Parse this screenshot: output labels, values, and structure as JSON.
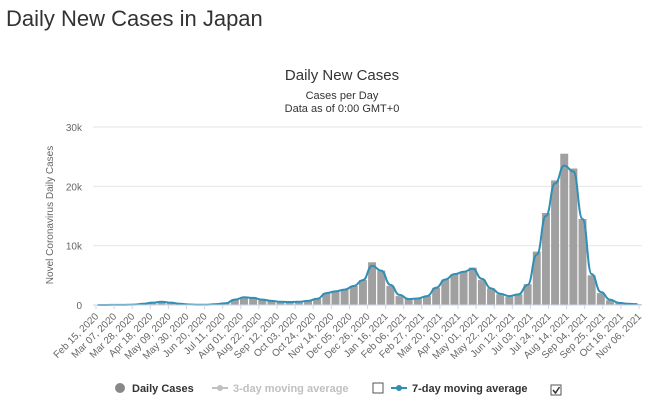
{
  "page": {
    "title": "Daily New Cases in Japan"
  },
  "chart_data": {
    "type": "bar",
    "title": "Daily New Cases",
    "subtitle": "Cases per Day",
    "subtitle2": "Data as of 0:00 GMT+0",
    "ylabel": "Novel Coronavirus Daily Cases",
    "xlabel": "",
    "ylim": [
      0,
      30000
    ],
    "y_ticks": [
      0,
      10000,
      20000,
      30000
    ],
    "y_tick_labels": [
      "0",
      "10k",
      "20k",
      "30k"
    ],
    "grid": true,
    "legend_position": "bottom",
    "x_tick_labels": [
      "Feb 15, 2020",
      "Mar 07, 2020",
      "Mar 28, 2020",
      "Apr 18, 2020",
      "May 09, 2020",
      "May 30, 2020",
      "Jun 20, 2020",
      "Jul 11, 2020",
      "Aug 01, 2020",
      "Aug 22, 2020",
      "Sep 12, 2020",
      "Oct 03, 2020",
      "Oct 24, 2020",
      "Nov 14, 2020",
      "Dec 05, 2020",
      "Dec 26, 2020",
      "Jan 16, 2021",
      "Feb 06, 2021",
      "Feb 27, 2021",
      "Mar 20, 2021",
      "Apr 10, 2021",
      "May 01, 2021",
      "May 22, 2021",
      "Jun 12, 2021",
      "Jul 03, 2021",
      "Jul 24, 2021",
      "Aug 14, 2021",
      "Sep 04, 2021",
      "Sep 25, 2021",
      "Oct 16, 2021",
      "Nov 06, 2021"
    ],
    "series": [
      {
        "name": "Daily Cases",
        "color": "#a0a0a0",
        "visible": true,
        "values": [
          0,
          10,
          20,
          30,
          60,
          200,
          400,
          550,
          400,
          200,
          80,
          40,
          50,
          150,
          300,
          900,
          1300,
          1200,
          900,
          700,
          550,
          500,
          550,
          700,
          1050,
          2000,
          2300,
          2600,
          3200,
          4200,
          7200,
          5800,
          3200,
          1500,
          1000,
          1100,
          1500,
          2900,
          4300,
          5200,
          5600,
          6300,
          4200,
          2800,
          1800,
          1400,
          1800,
          3500,
          9000,
          15500,
          21000,
          25500,
          23000,
          14500,
          5000,
          2000,
          800,
          300,
          200,
          150
        ]
      },
      {
        "name": "3-day moving average",
        "color": "#c0c0c0",
        "visible": false,
        "values": []
      },
      {
        "name": "7-day moving average",
        "color": "#2f8fb5",
        "visible": true,
        "values": [
          0,
          10,
          20,
          30,
          60,
          200,
          400,
          550,
          400,
          200,
          80,
          40,
          50,
          150,
          300,
          900,
          1300,
          1200,
          900,
          700,
          550,
          500,
          550,
          700,
          1050,
          2000,
          2300,
          2600,
          3200,
          4200,
          6600,
          5800,
          3400,
          1700,
          1000,
          1100,
          1500,
          2900,
          4300,
          5200,
          5600,
          6100,
          4400,
          2800,
          1900,
          1500,
          1800,
          3400,
          8500,
          15000,
          20500,
          23500,
          22500,
          14500,
          5200,
          2200,
          900,
          350,
          200,
          150
        ]
      }
    ]
  },
  "legend": {
    "daily_label": "Daily Cases",
    "avg3_label": "3-day moving average",
    "avg7_label": "7-day moving average",
    "daily_color": "#888888",
    "avg3_color": "#c0c0c0",
    "avg7_color": "#2f8fb5",
    "avg3_checked": false,
    "avg7_checked": true
  }
}
